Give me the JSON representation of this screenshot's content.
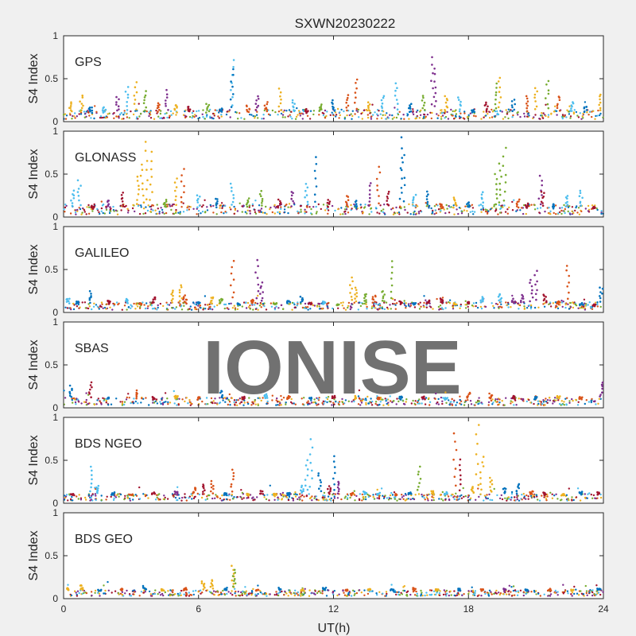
{
  "figure": {
    "title": "SXWN20230222",
    "xlabel": "UT(h)",
    "watermark": "IONISE"
  },
  "chart_data": {
    "type": "scatter",
    "title": "SXWN20230222",
    "xlabel": "UT(h)",
    "ylabel": "S4 Index",
    "xlim": [
      0,
      24
    ],
    "ylim": [
      0,
      1
    ],
    "x_ticks": [
      "0",
      "6",
      "12",
      "18",
      "24"
    ],
    "y_ticks": [
      "0",
      "0.5",
      "1"
    ],
    "colors": [
      "#0072BD",
      "#D95319",
      "#EDB120",
      "#7E2F8E",
      "#77AC30",
      "#4DBEEE",
      "#A2142F"
    ],
    "panels": [
      {
        "label": "GPS",
        "points": [
          [
            0.3,
            0.22,
            2
          ],
          [
            0.8,
            0.3,
            2
          ],
          [
            1.2,
            0.17,
            0
          ],
          [
            1.8,
            0.16,
            5
          ],
          [
            2.4,
            0.28,
            3
          ],
          [
            2.8,
            0.4,
            5
          ],
          [
            3.2,
            0.45,
            2
          ],
          [
            3.6,
            0.35,
            4
          ],
          [
            4.2,
            0.22,
            1
          ],
          [
            4.6,
            0.36,
            3
          ],
          [
            5.0,
            0.2,
            2
          ],
          [
            5.6,
            0.18,
            6
          ],
          [
            6.4,
            0.2,
            4
          ],
          [
            7.0,
            0.15,
            0
          ],
          [
            7.5,
            0.72,
            5
          ],
          [
            7.5,
            0.62,
            0
          ],
          [
            8.2,
            0.18,
            1
          ],
          [
            8.6,
            0.3,
            3
          ],
          [
            9.0,
            0.22,
            1
          ],
          [
            9.6,
            0.38,
            2
          ],
          [
            10.2,
            0.25,
            5
          ],
          [
            10.8,
            0.14,
            6
          ],
          [
            11.4,
            0.2,
            4
          ],
          [
            12.0,
            0.24,
            0
          ],
          [
            12.6,
            0.3,
            1
          ],
          [
            13.0,
            0.5,
            1
          ],
          [
            13.6,
            0.22,
            2
          ],
          [
            14.2,
            0.3,
            5
          ],
          [
            14.8,
            0.45,
            5
          ],
          [
            15.4,
            0.2,
            0
          ],
          [
            16.0,
            0.3,
            4
          ],
          [
            16.4,
            0.76,
            3
          ],
          [
            16.5,
            0.62,
            3
          ],
          [
            17.0,
            0.3,
            2
          ],
          [
            17.6,
            0.28,
            5
          ],
          [
            18.2,
            0.14,
            0
          ],
          [
            18.8,
            0.22,
            6
          ],
          [
            19.2,
            0.45,
            4
          ],
          [
            19.4,
            0.52,
            2
          ],
          [
            20.0,
            0.25,
            0
          ],
          [
            20.6,
            0.3,
            1
          ],
          [
            21.0,
            0.4,
            2
          ],
          [
            21.5,
            0.48,
            4
          ],
          [
            22.0,
            0.3,
            1
          ],
          [
            22.6,
            0.22,
            5
          ],
          [
            23.2,
            0.18,
            0
          ],
          [
            23.8,
            0.32,
            2
          ]
        ]
      },
      {
        "label": "GLONASS",
        "points": [
          [
            0.4,
            0.3,
            5
          ],
          [
            0.7,
            0.42,
            5
          ],
          [
            1.3,
            0.12,
            6
          ],
          [
            2.0,
            0.2,
            3
          ],
          [
            2.6,
            0.28,
            6
          ],
          [
            3.3,
            0.48,
            2
          ],
          [
            3.5,
            0.62,
            2
          ],
          [
            3.7,
            0.88,
            2
          ],
          [
            3.9,
            0.75,
            2
          ],
          [
            4.5,
            0.2,
            4
          ],
          [
            5.0,
            0.45,
            2
          ],
          [
            5.3,
            0.55,
            1
          ],
          [
            6.0,
            0.25,
            5
          ],
          [
            6.8,
            0.22,
            0
          ],
          [
            7.5,
            0.38,
            5
          ],
          [
            8.2,
            0.22,
            4
          ],
          [
            8.8,
            0.3,
            4
          ],
          [
            9.6,
            0.2,
            6
          ],
          [
            10.2,
            0.3,
            3
          ],
          [
            10.8,
            0.38,
            5
          ],
          [
            11.2,
            0.7,
            0
          ],
          [
            11.8,
            0.2,
            6
          ],
          [
            12.6,
            0.25,
            1
          ],
          [
            13.0,
            0.18,
            0
          ],
          [
            13.6,
            0.4,
            3
          ],
          [
            14.0,
            0.58,
            1
          ],
          [
            14.4,
            0.3,
            6
          ],
          [
            15.0,
            0.92,
            0
          ],
          [
            15.1,
            0.72,
            0
          ],
          [
            15.6,
            0.25,
            5
          ],
          [
            16.2,
            0.3,
            0
          ],
          [
            16.8,
            0.15,
            1
          ],
          [
            17.4,
            0.22,
            2
          ],
          [
            18.0,
            0.18,
            0
          ],
          [
            18.6,
            0.28,
            5
          ],
          [
            19.2,
            0.5,
            4
          ],
          [
            19.4,
            0.62,
            4
          ],
          [
            19.6,
            0.8,
            4
          ],
          [
            20.2,
            0.2,
            1
          ],
          [
            20.6,
            0.15,
            6
          ],
          [
            21.2,
            0.48,
            3
          ],
          [
            21.3,
            0.3,
            6
          ],
          [
            21.8,
            0.15,
            0
          ],
          [
            22.4,
            0.25,
            5
          ],
          [
            23.0,
            0.3,
            5
          ],
          [
            23.6,
            0.12,
            6
          ]
        ]
      },
      {
        "label": "GALILEO",
        "points": [
          [
            0.2,
            0.16,
            5
          ],
          [
            0.6,
            0.12,
            0
          ],
          [
            1.2,
            0.24,
            0
          ],
          [
            2.0,
            0.14,
            6
          ],
          [
            2.8,
            0.16,
            5
          ],
          [
            3.4,
            0.1,
            1
          ],
          [
            4.0,
            0.18,
            6
          ],
          [
            4.8,
            0.25,
            2
          ],
          [
            5.2,
            0.32,
            2
          ],
          [
            5.4,
            0.2,
            1
          ],
          [
            6.0,
            0.12,
            0
          ],
          [
            6.6,
            0.18,
            2
          ],
          [
            7.0,
            0.16,
            4
          ],
          [
            7.5,
            0.6,
            1
          ],
          [
            7.8,
            0.1,
            0
          ],
          [
            8.4,
            0.15,
            1
          ],
          [
            8.6,
            0.62,
            3
          ],
          [
            8.8,
            0.35,
            3
          ],
          [
            9.4,
            0.1,
            4
          ],
          [
            10.0,
            0.14,
            0
          ],
          [
            10.6,
            0.18,
            0
          ],
          [
            11.0,
            0.1,
            6
          ],
          [
            11.6,
            0.12,
            5
          ],
          [
            12.2,
            0.08,
            4
          ],
          [
            12.8,
            0.4,
            2
          ],
          [
            13.0,
            0.28,
            2
          ],
          [
            13.4,
            0.22,
            4
          ],
          [
            13.8,
            0.2,
            1
          ],
          [
            14.2,
            0.25,
            4
          ],
          [
            14.6,
            0.6,
            4
          ],
          [
            15.0,
            0.12,
            6
          ],
          [
            15.6,
            0.1,
            0
          ],
          [
            16.2,
            0.14,
            6
          ],
          [
            16.8,
            0.16,
            6
          ],
          [
            17.4,
            0.1,
            2
          ],
          [
            18.0,
            0.12,
            6
          ],
          [
            18.6,
            0.18,
            5
          ],
          [
            19.4,
            0.22,
            5
          ],
          [
            20.0,
            0.15,
            3
          ],
          [
            20.4,
            0.2,
            3
          ],
          [
            20.8,
            0.38,
            3
          ],
          [
            21.0,
            0.48,
            3
          ],
          [
            21.4,
            0.2,
            6
          ],
          [
            22.0,
            0.12,
            1
          ],
          [
            22.4,
            0.55,
            1
          ],
          [
            23.0,
            0.1,
            0
          ],
          [
            23.6,
            0.08,
            6
          ],
          [
            23.9,
            0.3,
            0
          ]
        ]
      },
      {
        "label": "SBAS",
        "points": [
          [
            0.3,
            0.25,
            0
          ],
          [
            1.2,
            0.3,
            6
          ],
          [
            2.0,
            0.12,
            0
          ],
          [
            3.2,
            0.2,
            1
          ],
          [
            4.0,
            0.12,
            6
          ],
          [
            5.0,
            0.14,
            2
          ],
          [
            6.0,
            0.13,
            1
          ],
          [
            7.0,
            0.2,
            0
          ],
          [
            8.0,
            0.12,
            6
          ],
          [
            9.0,
            0.15,
            5
          ],
          [
            10.0,
            0.13,
            1
          ],
          [
            11.0,
            0.12,
            0
          ],
          [
            12.0,
            0.14,
            6
          ],
          [
            13.0,
            0.13,
            2
          ],
          [
            14.0,
            0.12,
            1
          ],
          [
            15.0,
            0.14,
            0
          ],
          [
            16.0,
            0.13,
            6
          ],
          [
            17.0,
            0.12,
            5
          ],
          [
            18.0,
            0.18,
            1
          ],
          [
            19.0,
            0.16,
            1
          ],
          [
            20.0,
            0.13,
            6
          ],
          [
            21.0,
            0.12,
            0
          ],
          [
            22.0,
            0.14,
            2
          ],
          [
            23.0,
            0.13,
            1
          ],
          [
            23.9,
            0.3,
            3
          ]
        ]
      },
      {
        "label": "BDS NGEO",
        "points": [
          [
            0.4,
            0.1,
            6
          ],
          [
            1.2,
            0.42,
            5
          ],
          [
            1.5,
            0.2,
            5
          ],
          [
            2.2,
            0.12,
            0
          ],
          [
            3.0,
            0.1,
            1
          ],
          [
            4.0,
            0.12,
            6
          ],
          [
            5.0,
            0.14,
            3
          ],
          [
            5.8,
            0.18,
            1
          ],
          [
            6.2,
            0.22,
            6
          ],
          [
            6.6,
            0.25,
            1
          ],
          [
            7.2,
            0.12,
            0
          ],
          [
            7.5,
            0.4,
            1
          ],
          [
            8.2,
            0.1,
            2
          ],
          [
            8.8,
            0.14,
            6
          ],
          [
            9.4,
            0.1,
            2
          ],
          [
            10.0,
            0.12,
            0
          ],
          [
            10.6,
            0.2,
            5
          ],
          [
            10.8,
            0.5,
            5
          ],
          [
            11.0,
            0.75,
            5
          ],
          [
            11.4,
            0.35,
            0
          ],
          [
            11.8,
            0.2,
            6
          ],
          [
            12.0,
            0.55,
            0
          ],
          [
            12.2,
            0.25,
            3
          ],
          [
            12.8,
            0.12,
            1
          ],
          [
            13.4,
            0.14,
            5
          ],
          [
            14.0,
            0.12,
            5
          ],
          [
            14.8,
            0.1,
            1
          ],
          [
            15.4,
            0.12,
            0
          ],
          [
            15.8,
            0.42,
            4
          ],
          [
            16.4,
            0.14,
            2
          ],
          [
            17.0,
            0.12,
            5
          ],
          [
            17.4,
            0.82,
            1
          ],
          [
            17.6,
            0.5,
            6
          ],
          [
            18.2,
            0.2,
            2
          ],
          [
            18.4,
            0.92,
            2
          ],
          [
            18.6,
            0.55,
            2
          ],
          [
            19.0,
            0.3,
            2
          ],
          [
            19.6,
            0.18,
            0
          ],
          [
            20.2,
            0.22,
            0
          ],
          [
            20.8,
            0.14,
            1
          ],
          [
            21.4,
            0.12,
            6
          ],
          [
            22.2,
            0.1,
            2
          ],
          [
            23.0,
            0.13,
            0
          ],
          [
            23.8,
            0.12,
            6
          ]
        ]
      },
      {
        "label": "BDS GEO",
        "points": [
          [
            0.2,
            0.12,
            2
          ],
          [
            0.8,
            0.16,
            2
          ],
          [
            1.6,
            0.1,
            0
          ],
          [
            2.6,
            0.12,
            1
          ],
          [
            3.6,
            0.14,
            0
          ],
          [
            4.4,
            0.1,
            2
          ],
          [
            5.4,
            0.12,
            1
          ],
          [
            6.2,
            0.2,
            2
          ],
          [
            6.6,
            0.22,
            2
          ],
          [
            7.2,
            0.12,
            0
          ],
          [
            7.5,
            0.38,
            2
          ],
          [
            7.6,
            0.34,
            4
          ],
          [
            8.6,
            0.1,
            1
          ],
          [
            9.6,
            0.12,
            0
          ],
          [
            10.6,
            0.1,
            2
          ],
          [
            11.6,
            0.12,
            0
          ],
          [
            12.6,
            0.1,
            1
          ],
          [
            13.6,
            0.11,
            2
          ],
          [
            14.6,
            0.1,
            0
          ],
          [
            15.6,
            0.12,
            1
          ],
          [
            16.6,
            0.1,
            2
          ],
          [
            17.6,
            0.11,
            0
          ],
          [
            18.6,
            0.1,
            1
          ],
          [
            19.6,
            0.12,
            3
          ],
          [
            20.6,
            0.1,
            0
          ],
          [
            21.6,
            0.11,
            1
          ],
          [
            22.6,
            0.1,
            2
          ],
          [
            23.8,
            0.12,
            0
          ]
        ]
      }
    ]
  }
}
